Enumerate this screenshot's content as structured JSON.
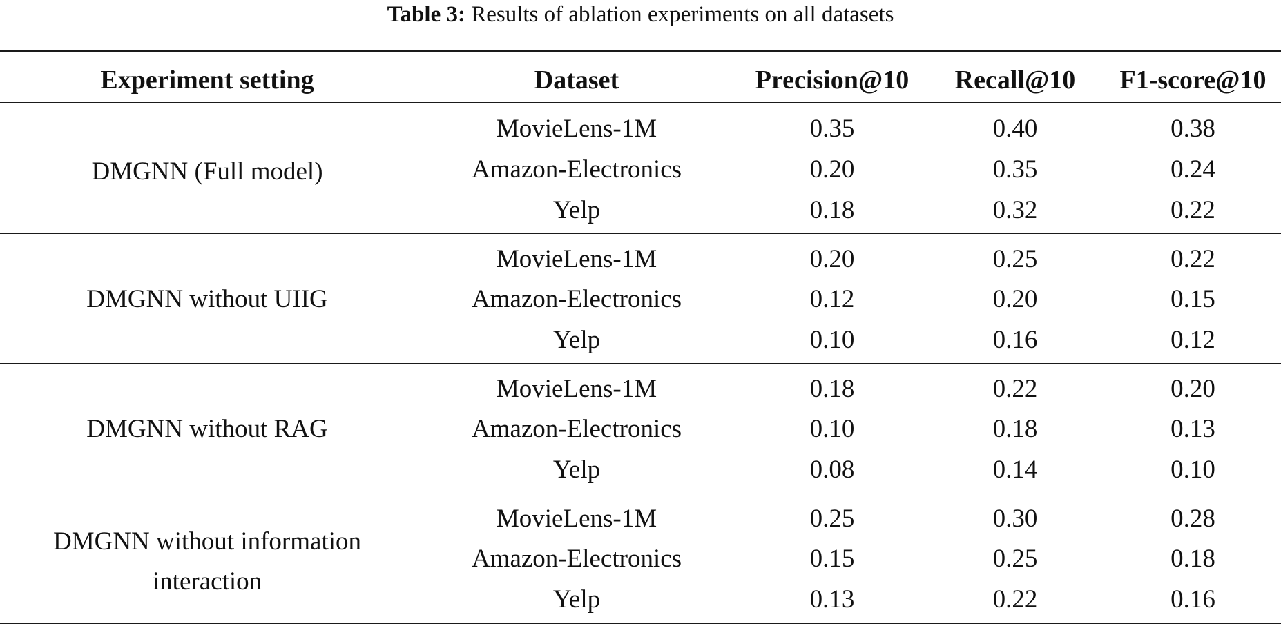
{
  "caption": {
    "label": "Table 3:",
    "text": "Results of ablation experiments on all datasets"
  },
  "table": {
    "headers": [
      "Experiment setting",
      "Dataset",
      "Precision@10",
      "Recall@10",
      "F1-score@10"
    ],
    "groups": [
      {
        "setting": "DMGNN (Full model)",
        "rows": [
          {
            "dataset": "MovieLens-1M",
            "precision": "0.35",
            "recall": "0.40",
            "f1": "0.38"
          },
          {
            "dataset": "Amazon-Electronics",
            "precision": "0.20",
            "recall": "0.35",
            "f1": "0.24"
          },
          {
            "dataset": "Yelp",
            "precision": "0.18",
            "recall": "0.32",
            "f1": "0.22"
          }
        ]
      },
      {
        "setting": "DMGNN without UIIG",
        "rows": [
          {
            "dataset": "MovieLens-1M",
            "precision": "0.20",
            "recall": "0.25",
            "f1": "0.22"
          },
          {
            "dataset": "Amazon-Electronics",
            "precision": "0.12",
            "recall": "0.20",
            "f1": "0.15"
          },
          {
            "dataset": "Yelp",
            "precision": "0.10",
            "recall": "0.16",
            "f1": "0.12"
          }
        ]
      },
      {
        "setting": "DMGNN without RAG",
        "rows": [
          {
            "dataset": "MovieLens-1M",
            "precision": "0.18",
            "recall": "0.22",
            "f1": "0.20"
          },
          {
            "dataset": "Amazon-Electronics",
            "precision": "0.10",
            "recall": "0.18",
            "f1": "0.13"
          },
          {
            "dataset": "Yelp",
            "precision": "0.08",
            "recall": "0.14",
            "f1": "0.10"
          }
        ]
      },
      {
        "setting_lines": [
          "DMGNN without information",
          "interaction"
        ],
        "rows": [
          {
            "dataset": "MovieLens-1M",
            "precision": "0.25",
            "recall": "0.30",
            "f1": "0.28"
          },
          {
            "dataset": "Amazon-Electronics",
            "precision": "0.15",
            "recall": "0.25",
            "f1": "0.18"
          },
          {
            "dataset": "Yelp",
            "precision": "0.13",
            "recall": "0.22",
            "f1": "0.16"
          }
        ]
      }
    ]
  }
}
